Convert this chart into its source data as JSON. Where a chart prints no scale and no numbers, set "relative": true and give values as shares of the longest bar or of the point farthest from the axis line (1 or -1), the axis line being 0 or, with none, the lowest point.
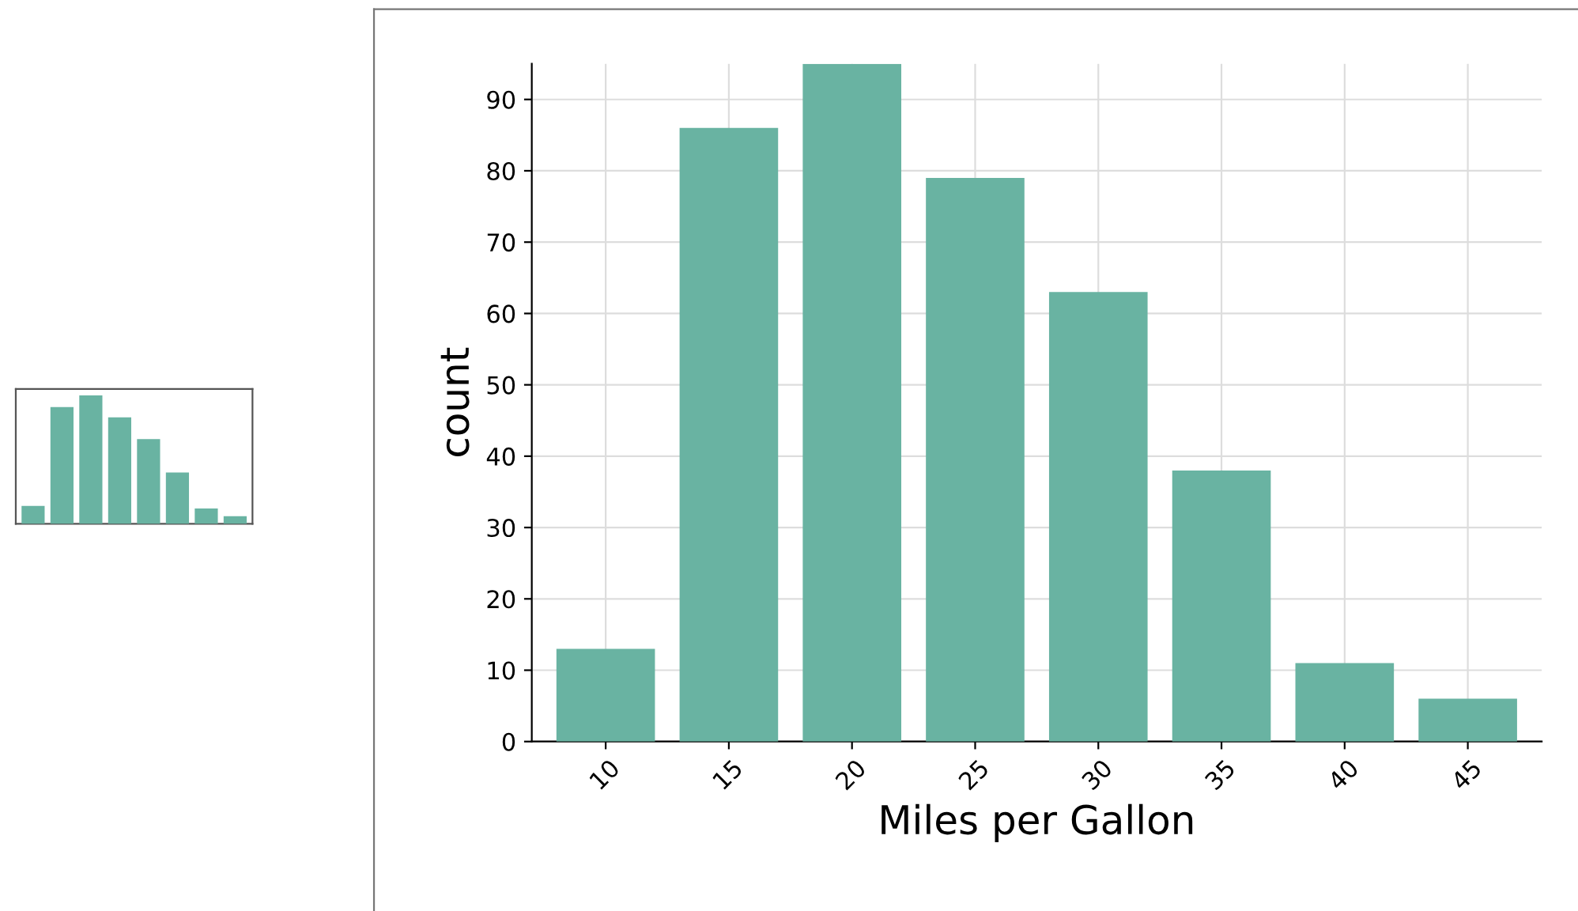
{
  "chart_data": [
    {
      "type": "bar",
      "categories": [
        null,
        null,
        null,
        null,
        null,
        null,
        null,
        null
      ],
      "relative": true,
      "color": "#69b3a2",
      "values": [
        0.14,
        0.91,
        1,
        0.83,
        0.66,
        0.4,
        0.12,
        0.06
      ],
      "tick_labels": false,
      "grid": false
    },
    {
      "type": "bar",
      "xlabel": "Miles per Gallon",
      "ylabel": "count",
      "categories": [
        "10",
        "15",
        "20",
        "25",
        "30",
        "35",
        "40",
        "45"
      ],
      "color": "#69b3a2",
      "values": [
        13,
        86,
        95,
        79,
        63,
        38,
        11,
        6
      ],
      "ylim": [
        0,
        95
      ],
      "yticks": [
        0,
        10,
        20,
        30,
        40,
        50,
        60,
        70,
        80,
        90
      ],
      "grid": true
    }
  ]
}
